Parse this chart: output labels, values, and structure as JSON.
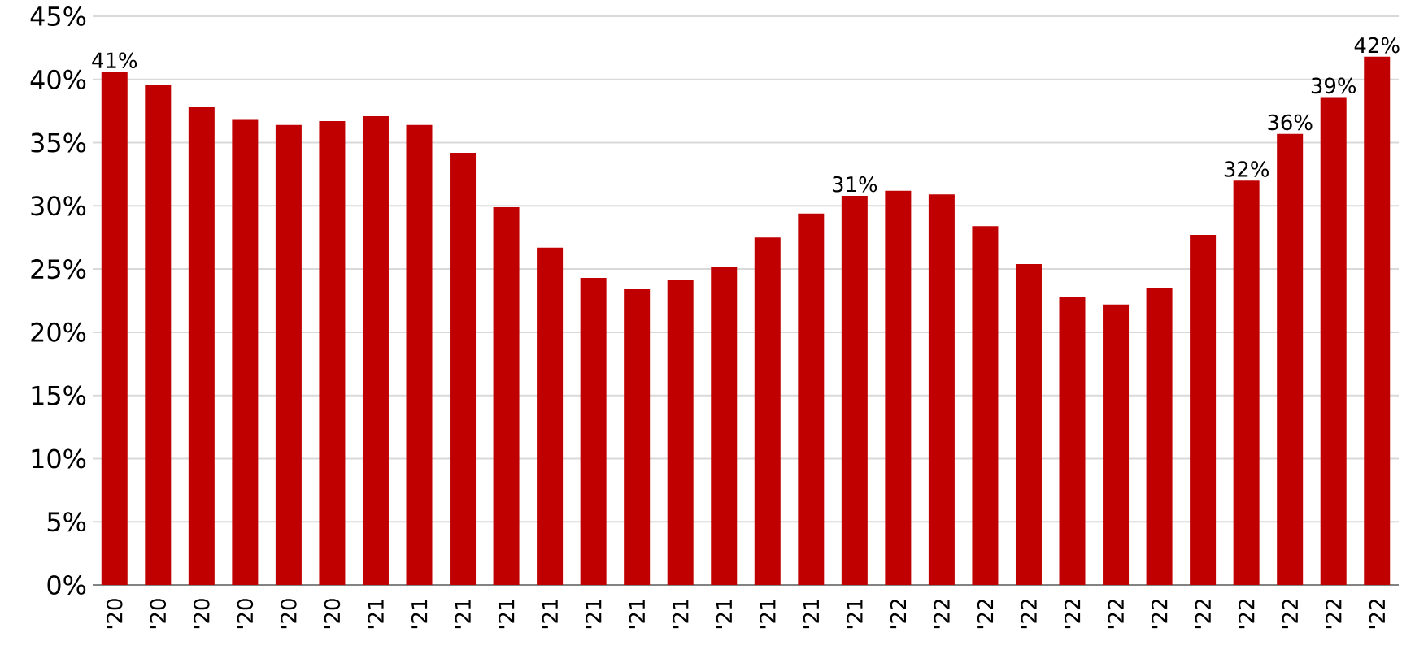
{
  "chart_data": {
    "type": "bar",
    "categories": [
      "'20",
      "'20",
      "'20",
      "'20",
      "'20",
      "'20",
      "'21",
      "'21",
      "'21",
      "'21",
      "'21",
      "'21",
      "'21",
      "'21",
      "'21",
      "'21",
      "'21",
      "'21",
      "'22",
      "'22",
      "'22",
      "'22",
      "'22",
      "'22",
      "'22",
      "'22",
      "'22",
      "'22",
      "'22",
      "'22"
    ],
    "values": [
      40.6,
      39.6,
      37.8,
      36.8,
      36.4,
      36.7,
      37.1,
      36.4,
      34.2,
      29.9,
      26.7,
      24.3,
      23.4,
      24.1,
      25.2,
      27.5,
      29.4,
      30.8,
      31.2,
      30.9,
      28.4,
      25.4,
      22.8,
      22.2,
      23.5,
      27.7,
      32.0,
      35.7,
      38.6,
      41.8
    ],
    "value_labels": [
      "41%",
      null,
      null,
      null,
      null,
      null,
      null,
      null,
      null,
      null,
      null,
      null,
      null,
      null,
      null,
      null,
      null,
      "31%",
      null,
      null,
      null,
      null,
      null,
      null,
      null,
      null,
      "32%",
      "36%",
      "39%",
      "42%"
    ],
    "color": "#c00000",
    "ylim": [
      0,
      45
    ],
    "yticks": [
      {
        "value": 0,
        "label": "0%"
      },
      {
        "value": 5,
        "label": "5%"
      },
      {
        "value": 10,
        "label": "10%"
      },
      {
        "value": 15,
        "label": "15%"
      },
      {
        "value": 20,
        "label": "20%"
      },
      {
        "value": 25,
        "label": "25%"
      },
      {
        "value": 30,
        "label": "30%"
      },
      {
        "value": 35,
        "label": "35%"
      },
      {
        "value": 40,
        "label": "40%"
      },
      {
        "value": 45,
        "label": "45%"
      }
    ],
    "grid": "y"
  }
}
